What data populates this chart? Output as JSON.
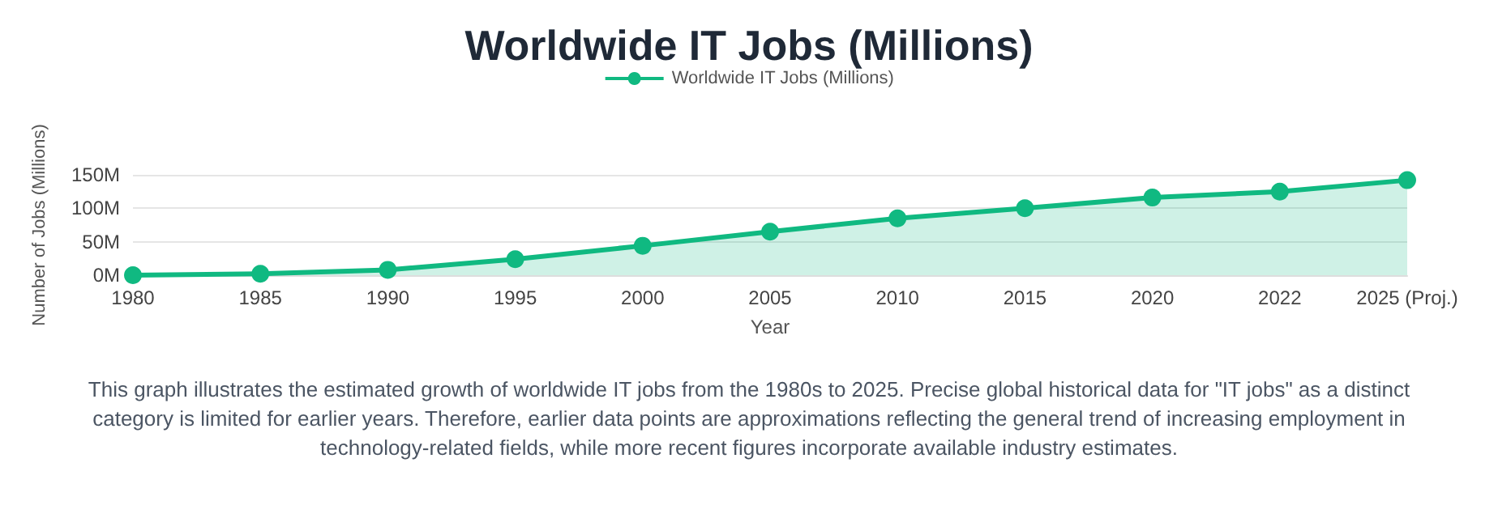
{
  "chart_data": {
    "type": "area",
    "title": "Worldwide IT Jobs (Millions)",
    "xlabel": "Year",
    "ylabel": "Number of Jobs (Millions)",
    "categories": [
      "1980",
      "1985",
      "1990",
      "1995",
      "2000",
      "2005",
      "2010",
      "2015",
      "2020",
      "2022",
      "2025 (Proj.)"
    ],
    "series": [
      {
        "name": "Worldwide IT Jobs (Millions)",
        "color": "#10b981",
        "values": [
          0,
          2,
          8,
          24,
          44,
          65,
          85,
          100,
          116,
          125,
          142
        ]
      }
    ],
    "ylim": [
      0,
      150
    ],
    "yticks": [
      {
        "value": 0,
        "label": "0M"
      },
      {
        "value": 50,
        "label": "50M"
      },
      {
        "value": 100,
        "label": "100M"
      },
      {
        "value": 150,
        "label": "150M"
      }
    ],
    "grid": "y",
    "legend": "top",
    "marker": "circle",
    "annotations": [
      "This graph illustrates the estimated growth of worldwide IT jobs from the 1980s to 2025. Precise global historical data for \"IT jobs\" as a distinct category is limited for earlier years. Therefore, earlier data points are approximations reflecting the general trend of increasing employment in technology-related fields, while more recent figures incorporate available industry estimates."
    ]
  }
}
